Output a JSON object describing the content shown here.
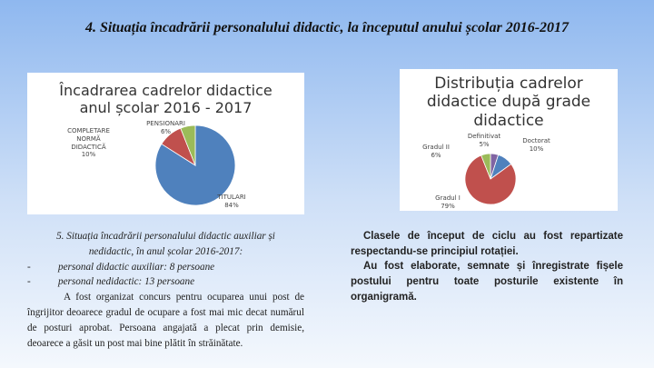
{
  "title": "4. Situația încadrării personalului didactic, la începutul anului școlar 2016-2017",
  "chart_data": [
    {
      "type": "pie",
      "title": "Încadrarea cadrelor didactice anul școlar 2016 - 2017",
      "categories": [
        "TITULARI",
        "COMPLETARE NORMĂ DIDACTICĂ",
        "PENSIONARI"
      ],
      "values": [
        84,
        10,
        6
      ],
      "value_labels": [
        "84%",
        "10%",
        "6%"
      ],
      "colors": [
        "#4f81bd",
        "#c0504d",
        "#9bbb59"
      ]
    },
    {
      "type": "pie",
      "title": "Distribuția cadrelor didactice după grade didactice",
      "categories": [
        "Definitivat",
        "Doctorat",
        "Gradul I",
        "Gradul II"
      ],
      "values": [
        5,
        10,
        79,
        6
      ],
      "value_labels": [
        "5%",
        "10%",
        "79%",
        "6%"
      ],
      "colors": [
        "#8064a2",
        "#4f81bd",
        "#c0504d",
        "#9bbb59"
      ]
    }
  ],
  "left_text": {
    "heading": "5. Situația încadrării personalului didactic auxiliar și nedidactic, în anul școlar 2016-2017:",
    "items": [
      {
        "marker": "-",
        "text": "personal didactic auxiliar: 8 persoane"
      },
      {
        "marker": "-",
        "text": "personal nedidactic: 13 persoane"
      }
    ],
    "paragraph": "A fost organizat concurs pentru ocuparea unui post de îngrijitor deoarece gradul de ocupare a fost mai mic decat numărul de posturi aprobat. Persoana angajată a plecat prin demisie, deoarece a găsit un post mai bine plătit în străinătate."
  },
  "right_text": [
    "Clasele de început de ciclu au fost repartizate respectandu-se principiul rotației.",
    "Au fost elaborate, semnate și înregistrate fișele postului pentru toate posturile existente în organigramă."
  ]
}
